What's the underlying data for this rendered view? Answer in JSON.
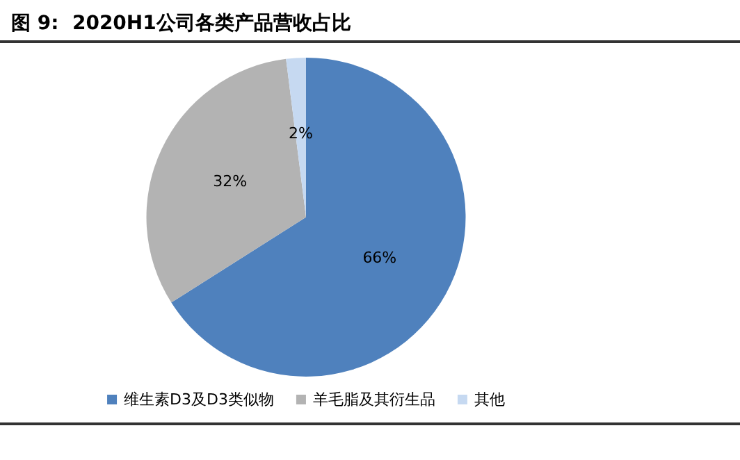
{
  "chart_data": {
    "type": "pie",
    "title": "图 9:  2020H1公司各类产品营收占比",
    "categories": [
      "维生素D3及D3类似物",
      "羊毛脂及其衍生品",
      "其他"
    ],
    "values": [
      66,
      32,
      2
    ],
    "colors": [
      "#4f81bd",
      "#b3b3b3",
      "#c6d9f1"
    ],
    "value_labels": [
      "66%",
      "32%",
      "2%"
    ],
    "legend": "bottom"
  }
}
